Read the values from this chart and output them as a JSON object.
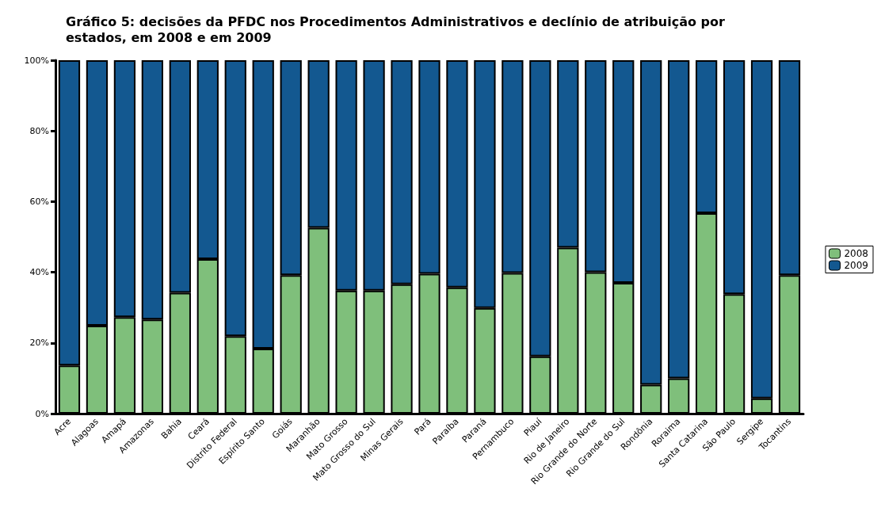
{
  "chart_data": {
    "type": "bar",
    "stacked": true,
    "title": "Gráfico 5: decisões da PFDC nos Procedimentos Administrativos e declínio de atribuição por estados, em 2008 e em 2009",
    "categories": [
      "Acre",
      "Alagoas",
      "Amapá",
      "Amazonas",
      "Bahia",
      "Ceará",
      "Distrito Federal",
      "Espírito Santo",
      "Goiás",
      "Maranhão",
      "Mato Grosso",
      "Mato Grosso do Sul",
      "Minas Gerais",
      "Pará",
      "Paraíba",
      "Paraná",
      "Pernambuco",
      "Piauí",
      "Rio de Janeiro",
      "Rio Grande do Norte",
      "Rio Grande do Sul",
      "Rondônia",
      "Roraima",
      "Santa Catarina",
      "São Paulo",
      "Sergipe",
      "Tocantins"
    ],
    "series": [
      {
        "name": "2008",
        "color": "#7fbf7b",
        "values": [
          13.6,
          24.9,
          27.3,
          26.6,
          34.2,
          43.7,
          21.9,
          18.4,
          39.2,
          52.6,
          34.8,
          34.8,
          36.6,
          39.6,
          35.7,
          29.9,
          39.8,
          16.2,
          47.0,
          40.0,
          37.0,
          8.2,
          10.0,
          56.7,
          33.8,
          4.3,
          39.2
        ]
      },
      {
        "name": "2009",
        "color": "#135890",
        "values": [
          86.4,
          75.1,
          72.7,
          73.4,
          65.8,
          56.3,
          78.1,
          81.6,
          60.8,
          47.4,
          65.2,
          65.2,
          63.4,
          60.4,
          64.3,
          70.1,
          60.2,
          83.8,
          53.0,
          60.0,
          63.0,
          91.8,
          90.0,
          43.3,
          66.2,
          95.7,
          60.8
        ]
      }
    ],
    "ylim": [
      0,
      100
    ],
    "yticks": [
      {
        "value": 0,
        "label": "0%"
      },
      {
        "value": 20,
        "label": "20%"
      },
      {
        "value": 40,
        "label": "40%"
      },
      {
        "value": 60,
        "label": "60%"
      },
      {
        "value": 80,
        "label": "80%"
      },
      {
        "value": 100,
        "label": "100%"
      }
    ],
    "grid": false,
    "legend": "right"
  }
}
